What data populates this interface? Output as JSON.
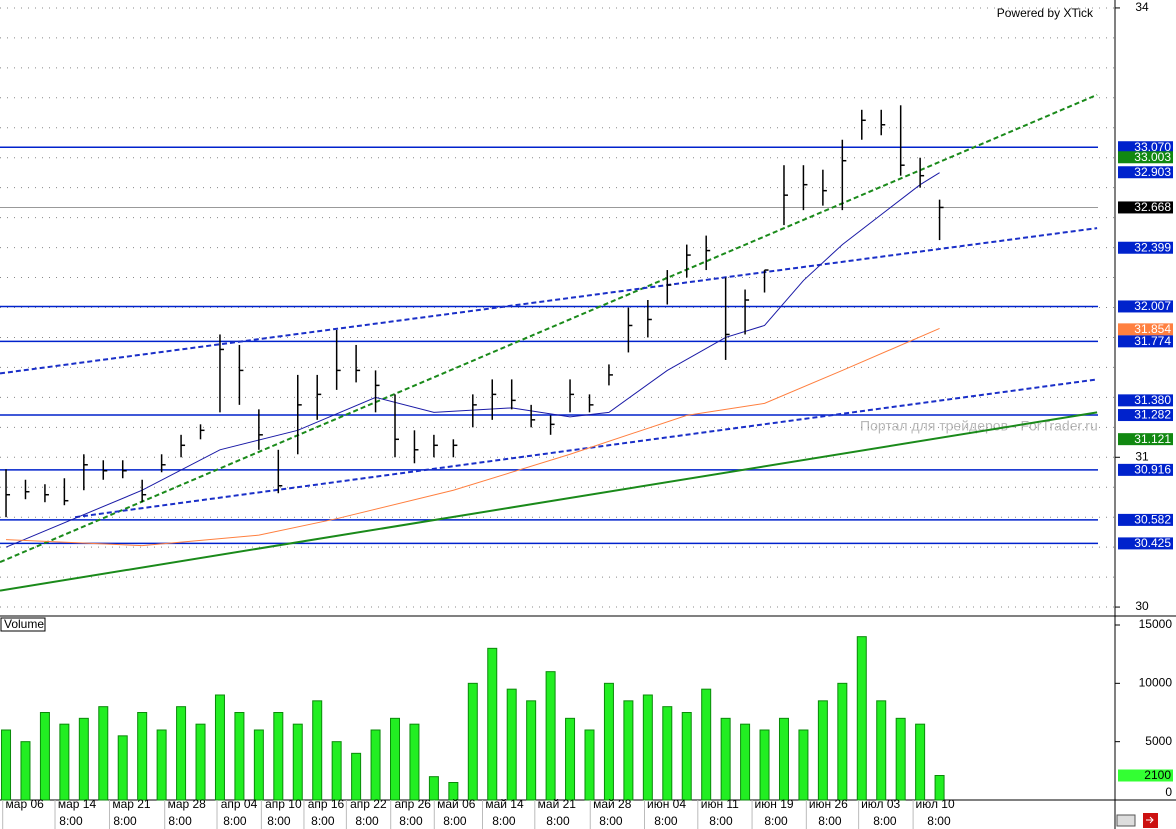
{
  "chart_data": {
    "type": "ohlc",
    "credit": "Powered by XTick",
    "watermark": "Портал для трейдеров - ForTrader.ru",
    "xlim": [
      -0.31,
      57.02
    ],
    "xticks": [
      {
        "value": 0.96,
        "label": "мар 06"
      },
      {
        "value": 3.65,
        "label": "мар 14"
      },
      {
        "value": 6.45,
        "label": "мар 21"
      },
      {
        "value": 9.29,
        "label": "мар 28"
      },
      {
        "value": 11.98,
        "label": "апр 04"
      },
      {
        "value": 14.26,
        "label": "апр 10"
      },
      {
        "value": 16.45,
        "label": "апр 16"
      },
      {
        "value": 18.63,
        "label": "апр 22"
      },
      {
        "value": 20.91,
        "label": "апр 26"
      },
      {
        "value": 23.15,
        "label": "май 06"
      },
      {
        "value": 25.63,
        "label": "май 14"
      },
      {
        "value": 28.32,
        "label": "май 21"
      },
      {
        "value": 31.17,
        "label": "май 28"
      },
      {
        "value": 33.96,
        "label": "июн 04"
      },
      {
        "value": 36.7,
        "label": "июн 11"
      },
      {
        "value": 39.49,
        "label": "июн 19"
      },
      {
        "value": 42.28,
        "label": "июн 26"
      },
      {
        "value": 44.97,
        "label": "июл 03"
      },
      {
        "value": 47.77,
        "label": "июл 10"
      }
    ],
    "sublabels": [
      {
        "value": 3.34,
        "label": "8:00"
      },
      {
        "value": 6.12,
        "label": "8:00"
      },
      {
        "value": 8.95,
        "label": "8:00"
      },
      {
        "value": 11.77,
        "label": "8:00"
      },
      {
        "value": 14.03,
        "label": "8:00"
      },
      {
        "value": 16.29,
        "label": "8:00"
      },
      {
        "value": 18.56,
        "label": "8:00"
      },
      {
        "value": 20.82,
        "label": "8:00"
      },
      {
        "value": 23.08,
        "label": "8:00"
      },
      {
        "value": 25.6,
        "label": "8:00"
      },
      {
        "value": 28.38,
        "label": "8:00"
      },
      {
        "value": 31.1,
        "label": "8:00"
      },
      {
        "value": 33.93,
        "label": "8:00"
      },
      {
        "value": 36.76,
        "label": "8:00"
      },
      {
        "value": 39.59,
        "label": "8:00"
      },
      {
        "value": 42.36,
        "label": "8:00"
      },
      {
        "value": 45.19,
        "label": "8:00"
      },
      {
        "value": 47.97,
        "label": "8:00"
      }
    ],
    "ylim": [
      29.947,
      34.053
    ],
    "yticks": [
      30,
      31,
      34
    ],
    "grid_step": 0.2,
    "bar_color": "#000000",
    "high": [
      30.92,
      30.85,
      30.82,
      30.86,
      31.02,
      30.98,
      30.98,
      30.85,
      31.02,
      31.15,
      31.22,
      31.82,
      31.75,
      31.32,
      31.05,
      31.55,
      31.55,
      31.85,
      31.75,
      31.58,
      31.42,
      31.18,
      31.15,
      31.12,
      31.42,
      31.52,
      31.52,
      31.35,
      31.28,
      31.52,
      31.42,
      31.62,
      32.0,
      32.05,
      32.25,
      32.42,
      32.48,
      32.2,
      32.12,
      32.25,
      32.95,
      32.95,
      32.92,
      33.12,
      33.32,
      33.32,
      33.35,
      33.0,
      32.72
    ],
    "low": [
      30.6,
      30.72,
      30.7,
      30.68,
      30.78,
      30.85,
      30.86,
      30.7,
      30.9,
      31.0,
      31.12,
      31.3,
      31.35,
      31.05,
      30.76,
      31.02,
      31.25,
      31.45,
      31.5,
      31.3,
      31.0,
      30.96,
      31.0,
      31.0,
      31.2,
      31.25,
      31.32,
      31.2,
      31.15,
      31.3,
      31.3,
      31.48,
      31.7,
      31.8,
      32.02,
      32.2,
      32.25,
      31.65,
      31.82,
      32.1,
      32.55,
      32.65,
      32.68,
      32.65,
      33.12,
      33.15,
      32.88,
      32.8,
      32.45
    ],
    "close": [
      30.75,
      30.77,
      30.75,
      30.71,
      30.95,
      30.91,
      30.91,
      30.75,
      30.95,
      31.08,
      31.18,
      31.72,
      31.58,
      31.15,
      30.81,
      31.35,
      31.42,
      31.58,
      31.58,
      31.48,
      31.12,
      31.05,
      31.08,
      31.08,
      31.35,
      31.42,
      31.38,
      31.25,
      31.22,
      31.42,
      31.35,
      31.55,
      31.88,
      31.92,
      32.15,
      32.35,
      32.38,
      31.82,
      32.05,
      32.25,
      32.75,
      32.82,
      32.78,
      32.98,
      33.25,
      33.22,
      32.95,
      32.88,
      32.668
    ],
    "moving_averages": [
      {
        "color": "#1a1aa6",
        "x": [
          0,
          7,
          11,
          15,
          19,
          22,
          26,
          29,
          31,
          34,
          37,
          39,
          41,
          43,
          45,
          47,
          48
        ],
        "values": [
          30.4,
          30.78,
          31.05,
          31.18,
          31.4,
          31.3,
          31.33,
          31.27,
          31.3,
          31.58,
          31.8,
          31.88,
          32.18,
          32.42,
          32.62,
          32.82,
          32.9
        ]
      },
      {
        "color": "#ff7f3f",
        "x": [
          0,
          7,
          13,
          17,
          23,
          29,
          35,
          39,
          43,
          48
        ],
        "values": [
          30.45,
          30.41,
          30.48,
          30.59,
          30.78,
          31.02,
          31.28,
          31.36,
          31.58,
          31.86
        ]
      }
    ],
    "trendlines": [
      {
        "color": "#1a8a1a",
        "dashed": true,
        "x": [
          -0.31,
          56.1
        ],
        "values": [
          30.3,
          33.42
        ]
      },
      {
        "color": "#1a2fc8",
        "dashed": true,
        "x": [
          -0.31,
          56.1
        ],
        "values": [
          31.56,
          32.53
        ]
      },
      {
        "color": "#1a2fc8",
        "dashed": true,
        "x": [
          3.55,
          56.1
        ],
        "values": [
          30.6,
          31.52
        ]
      },
      {
        "color": "#1a8a1a",
        "dashed": false,
        "x": [
          -0.31,
          56.1
        ],
        "values": [
          30.11,
          31.3
        ]
      }
    ],
    "price_labels": [
      {
        "value": 33.07,
        "label": "33.070",
        "bg": "#0022cc",
        "line": "#0022cc"
      },
      {
        "value": 33.003,
        "bg": "#118811"
      },
      {
        "value": 32.903,
        "bg": "#0022cc"
      },
      {
        "value": 32.668,
        "bg": "#000000",
        "line": "#999999"
      },
      {
        "value": 32.399,
        "bg": "#0022cc"
      },
      {
        "value": 32.007,
        "bg": "#0022cc",
        "line": "#0022cc"
      },
      {
        "value": 31.854,
        "bg": "#ff8040"
      },
      {
        "value": 31.774,
        "bg": "#0022cc",
        "line": "#0022cc"
      },
      {
        "value": 31.38,
        "label": "31.380",
        "bg": "#0022cc"
      },
      {
        "value": 31.282,
        "bg": "#0022cc",
        "line": "#0022cc"
      },
      {
        "value": 31.121,
        "bg": "#118811"
      },
      {
        "value": 30.916,
        "bg": "#0022cc",
        "line": "#0022cc"
      },
      {
        "value": 30.582,
        "bg": "#0022cc",
        "line": "#0022cc"
      },
      {
        "value": 30.425,
        "bg": "#0022cc",
        "line": "#0022cc"
      }
    ],
    "volume": {
      "title": "Volume",
      "color": "#22ee22",
      "ylim": [
        0,
        15600
      ],
      "yticks": [
        0,
        5000,
        10000,
        15000
      ],
      "values": [
        6000,
        5000,
        7500,
        6500,
        7000,
        8000,
        5500,
        7500,
        6000,
        8000,
        6500,
        9000,
        7500,
        6000,
        7500,
        6500,
        8500,
        5000,
        4000,
        6000,
        7000,
        6500,
        2000,
        1500,
        10000,
        13000,
        9500,
        8500,
        11000,
        7000,
        6000,
        10000,
        8500,
        9000,
        8000,
        7500,
        9500,
        7000,
        6500,
        6000,
        7000,
        6000,
        8500,
        10000,
        14000,
        8500,
        7000,
        6500,
        2100
      ],
      "last_label_bg": "#33ff33"
    }
  }
}
